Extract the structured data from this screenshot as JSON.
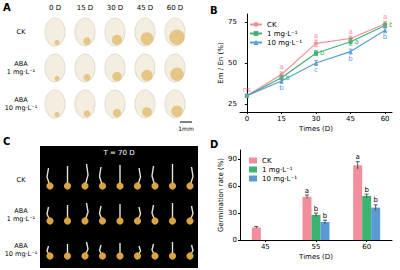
{
  "photo_panels": [
    {
      "label": "A",
      "columns": [
        "0 D",
        "15 D",
        "30 D",
        "45 D",
        "60 D"
      ],
      "rows": [
        "CK",
        "ABA\n1 mg·L⁻¹",
        "ABA\n10 mg·L⁻¹"
      ],
      "scale_bar": "1mm"
    },
    {
      "label": "C",
      "caption": "T = 70 D",
      "rows": [
        "CK",
        "ABA\n1 mg·L⁻¹",
        "ABA\n10 mg·L⁻¹"
      ]
    }
  ],
  "chart_data": [
    {
      "type": "line",
      "title": "B",
      "x": [
        0,
        15,
        30,
        45,
        60
      ],
      "xlim": [
        -3,
        63
      ],
      "xticks": [
        0,
        15,
        30,
        45,
        60
      ],
      "x_label": "Times (D)",
      "ylim": [
        20,
        80
      ],
      "yticks": [
        25,
        50,
        75
      ],
      "y_label": "Em / En (%)",
      "grid": false,
      "legend": "upper left",
      "series": [
        {
          "name": "CK",
          "color": "#f28e9b",
          "marker": "circle",
          "values": [
            30,
            43,
            62,
            65,
            74
          ],
          "error": [
            0.8,
            1.5,
            2,
            1.5,
            1.5
          ],
          "annotations": [
            "ns",
            "a",
            "a",
            "a",
            "a"
          ]
        },
        {
          "name": "1 mg·L⁻¹",
          "color": "#3cb371",
          "marker": "rect",
          "values": [
            30,
            41,
            56,
            63,
            73
          ],
          "error": [
            0.8,
            1.2,
            1.5,
            2,
            1.2
          ],
          "annotations": [
            null,
            "b",
            "b",
            "a",
            "b"
          ]
        },
        {
          "name": "10 mg·L⁻¹",
          "color": "#5b9bd5",
          "marker": "triangle",
          "values": [
            30,
            39,
            50,
            57,
            70
          ],
          "error": [
            0.8,
            1.5,
            1.5,
            1.5,
            1.5
          ],
          "annotations": [
            null,
            "b",
            "c",
            "b",
            "b"
          ]
        }
      ]
    },
    {
      "type": "bar",
      "title": "D",
      "categories": [
        "45",
        "55",
        "60"
      ],
      "x_label": "Times (D)",
      "ylim": [
        0,
        100
      ],
      "yticks": [
        0,
        30,
        60,
        90
      ],
      "y_label": "Germination rate (%)",
      "grid": false,
      "legend": "upper left",
      "series": [
        {
          "name": "CK",
          "color": "#f28e9b",
          "values": [
            14,
            48,
            83
          ],
          "error": [
            1,
            2,
            4
          ],
          "annotations": [
            null,
            "a",
            "a"
          ]
        },
        {
          "name": "1 mg·L⁻¹",
          "color": "#3cb371",
          "values": [
            0,
            28,
            49
          ],
          "error": [
            0,
            2,
            2
          ],
          "annotations": [
            null,
            "b",
            "b"
          ]
        },
        {
          "name": "10 mg·L⁻¹",
          "color": "#5b9bd5",
          "values": [
            0,
            20,
            36
          ],
          "error": [
            0,
            2,
            3
          ],
          "annotations": [
            null,
            "b",
            "b"
          ]
        }
      ]
    }
  ]
}
